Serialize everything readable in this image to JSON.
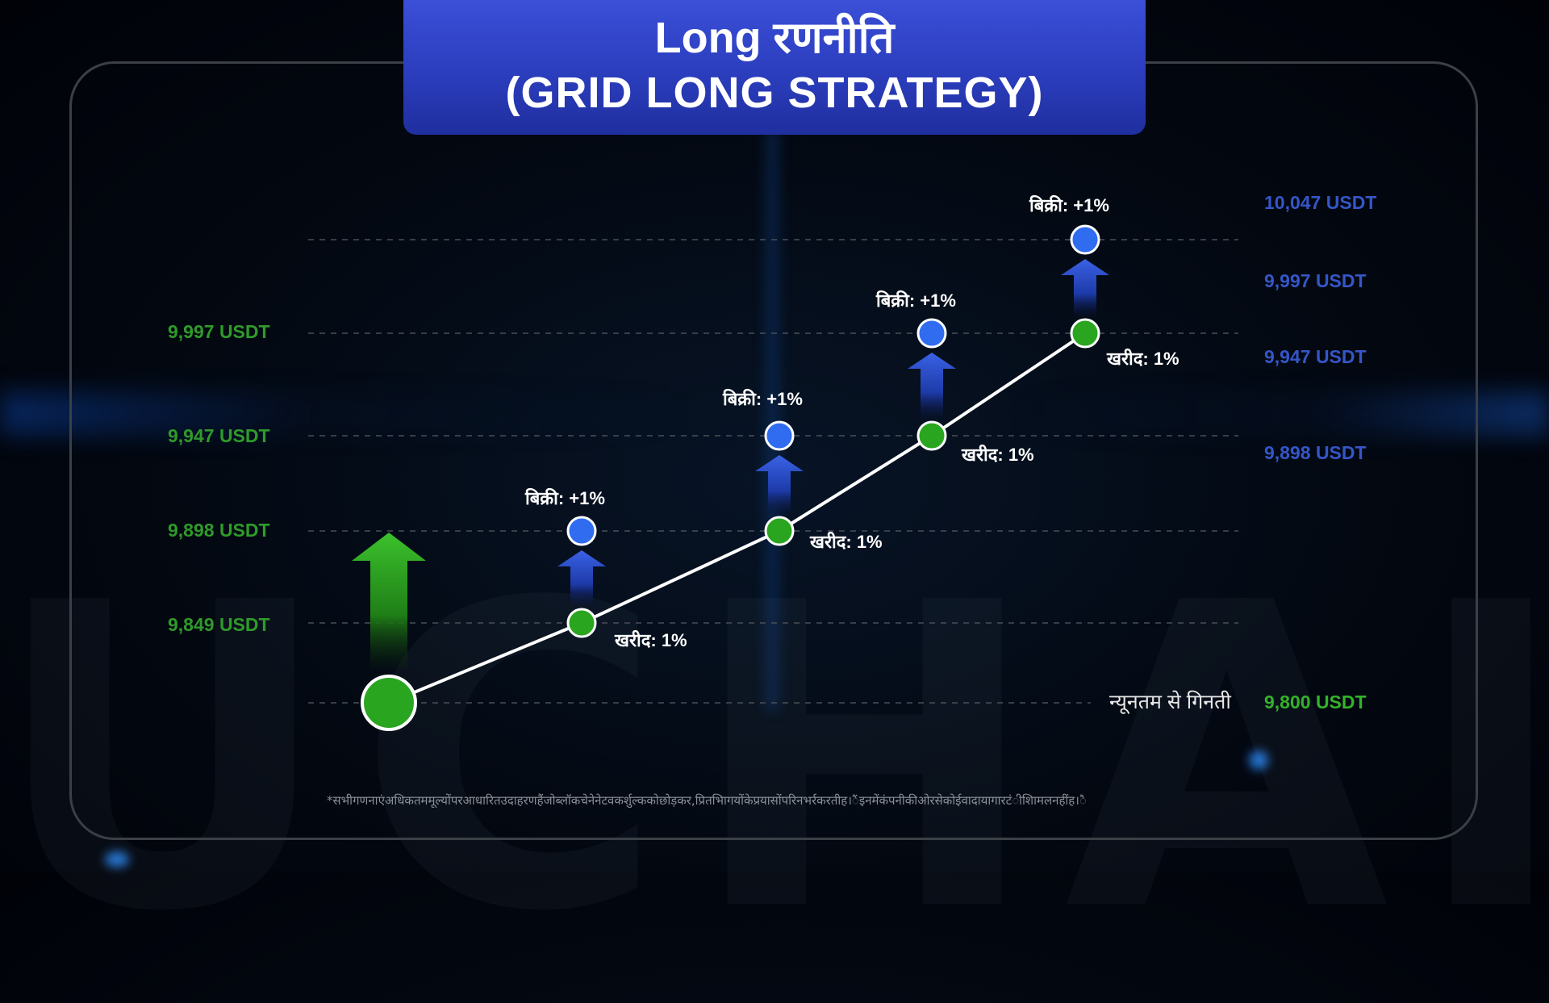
{
  "title": {
    "line1": "Long रणनीति",
    "line2": "(GRID LONG STRATEGY)"
  },
  "watermark": "UCHAIN",
  "colors": {
    "buy_green": "#2aa51f",
    "sell_blue": "#2f6cf0",
    "left_label_green": "#2f9a2a",
    "right_label_blue": "#3556c8",
    "banner_blue": "#2c3fc0"
  },
  "left_price_labels": [
    "9,997 USDT",
    "9,947 USDT",
    "9,898 USDT",
    "9,849 USDT"
  ],
  "right_price_labels": [
    "10,047 USDT",
    "9,997 USDT",
    "9,947 USDT",
    "9,898 USDT"
  ],
  "start": {
    "label": "न्यूनतम से गिनती",
    "price": "9,800 USDT",
    "price_value": 9800
  },
  "steps": [
    {
      "buy_label": "खरीद: 1%",
      "sell_label": "बिक्री: +1%",
      "buy_price": 9849,
      "sell_price": 9898
    },
    {
      "buy_label": "खरीद: 1%",
      "sell_label": "बिक्री: +1%",
      "buy_price": 9898,
      "sell_price": 9947
    },
    {
      "buy_label": "खरीद: 1%",
      "sell_label": "बिक्री: +1%",
      "buy_price": 9947,
      "sell_price": 9997
    },
    {
      "buy_label": "खरीद: 1%",
      "sell_label": "बिक्री: +1%",
      "buy_price": 9997,
      "sell_price": 10047
    }
  ],
  "footnote": "*सभीगणनाएंअधिकतममूल्योंपरआधारितउदाहरणहैंजोब्लॉकचेनेनेटवकर्शुल्ककोछोड़कर,प्रितभािगयोंकेप्रयासोंपरिनभर्रकरतीह।ैंइनमेंकंपनीकीओरसेकोईवादायागारटंीशािमलनहींह।ै"
}
